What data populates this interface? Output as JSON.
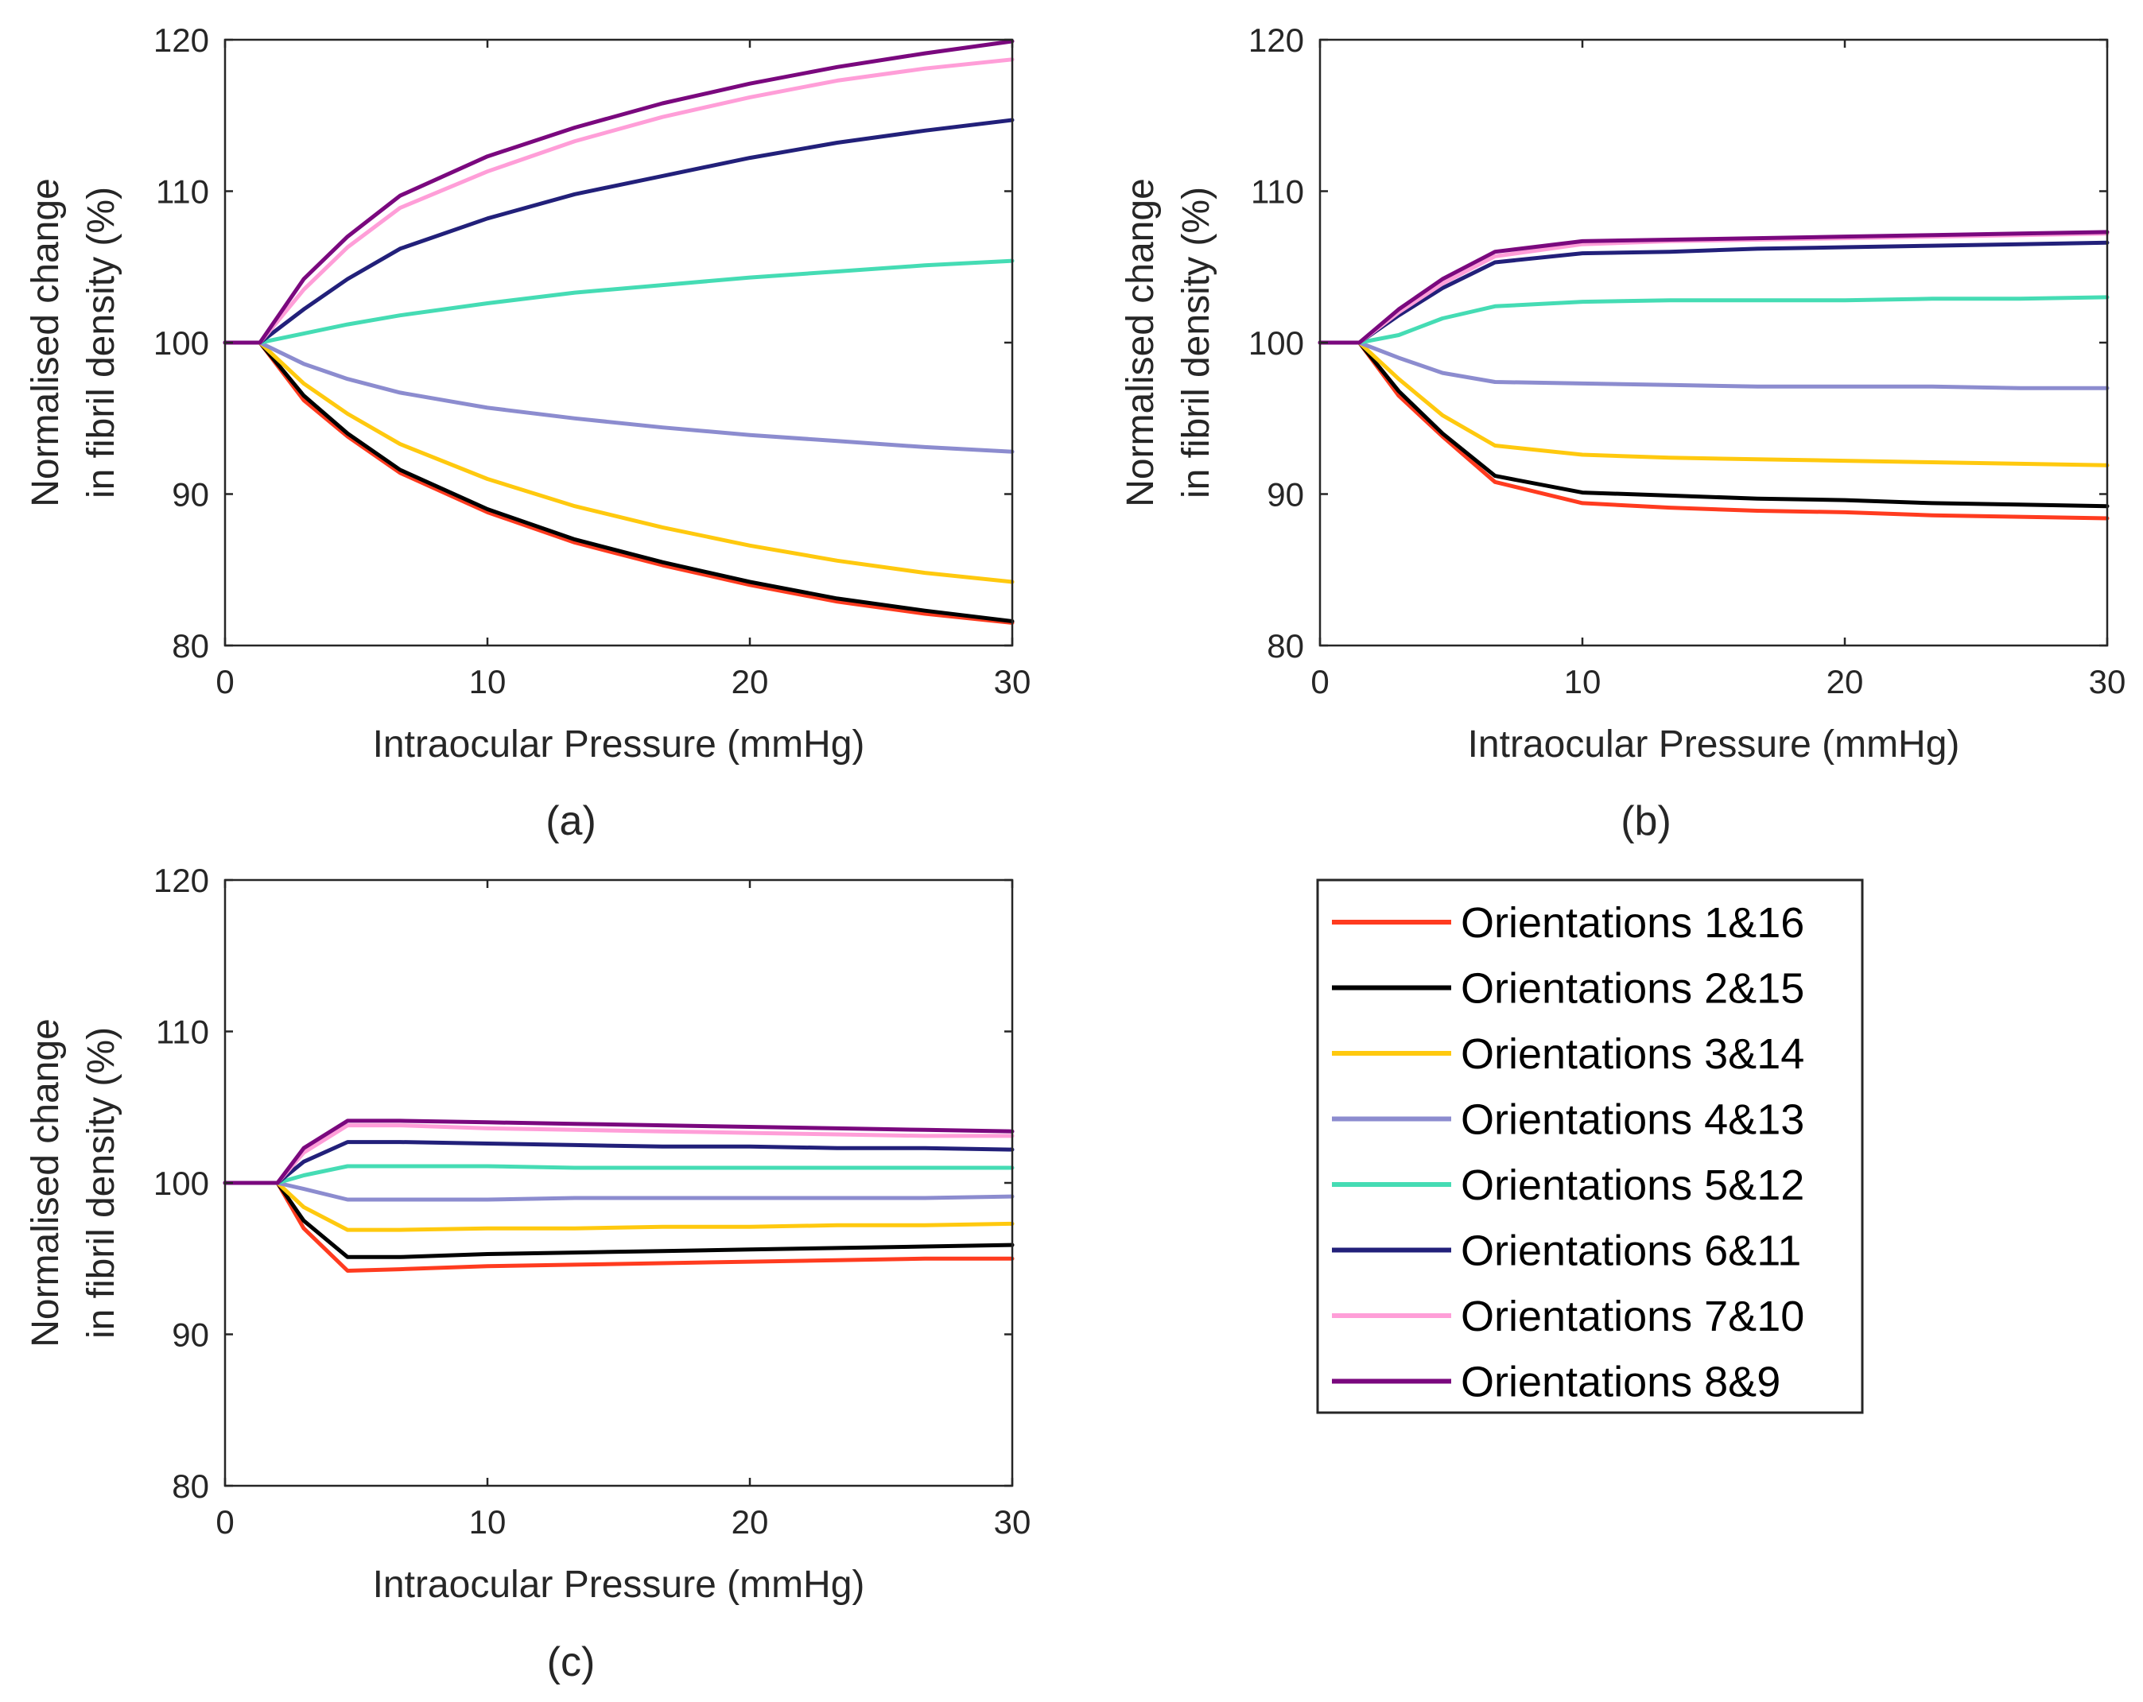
{
  "legend": {
    "items": [
      {
        "label": "Orientations 1&16",
        "color": "#ff3b1f"
      },
      {
        "label": "Orientations 2&15",
        "color": "#000000"
      },
      {
        "label": "Orientations 3&14",
        "color": "#ffc90e"
      },
      {
        "label": "Orientations 4&13",
        "color": "#8c8ccf"
      },
      {
        "label": "Orientations 5&12",
        "color": "#45dcb4"
      },
      {
        "label": "Orientations 6&11",
        "color": "#22207a"
      },
      {
        "label": "Orientations 7&10",
        "color": "#ff9ed8"
      },
      {
        "label": "Orientations 8&9",
        "color": "#7a087e"
      }
    ]
  },
  "chart_data": [
    {
      "type": "line",
      "panel_label": "(a)",
      "xlabel": "Intraocular Pressure (mmHg)",
      "ylabel": [
        "Normalised change",
        "in fibril density (%)"
      ],
      "xlim": [
        0,
        30
      ],
      "ylim": [
        80,
        120
      ],
      "xticks": [
        "0",
        "10",
        "20",
        "30"
      ],
      "yticks": [
        "80",
        "90",
        "100",
        "110",
        "120"
      ],
      "x": [
        0,
        1.33,
        3,
        4.67,
        6.67,
        10,
        13.33,
        16.67,
        20,
        23.33,
        26.67,
        30
      ],
      "series": [
        {
          "name": "Orientations 1&16",
          "values": [
            100,
            100,
            96.2,
            93.8,
            91.4,
            88.8,
            86.8,
            85.3,
            84.0,
            82.9,
            82.1,
            81.5
          ]
        },
        {
          "name": "Orientations 2&15",
          "values": [
            100,
            100,
            96.5,
            94.0,
            91.6,
            89.0,
            87.0,
            85.5,
            84.2,
            83.1,
            82.3,
            81.6
          ]
        },
        {
          "name": "Orientations 3&14",
          "values": [
            100,
            100,
            97.3,
            95.3,
            93.3,
            91.0,
            89.2,
            87.8,
            86.6,
            85.6,
            84.8,
            84.2
          ]
        },
        {
          "name": "Orientations 4&13",
          "values": [
            100,
            100,
            98.6,
            97.6,
            96.7,
            95.7,
            95.0,
            94.4,
            93.9,
            93.5,
            93.1,
            92.8
          ]
        },
        {
          "name": "Orientations 5&12",
          "values": [
            100,
            100,
            100.6,
            101.2,
            101.8,
            102.6,
            103.3,
            103.8,
            104.3,
            104.7,
            105.1,
            105.4
          ]
        },
        {
          "name": "Orientations 6&11",
          "values": [
            100,
            100,
            102.2,
            104.2,
            106.2,
            108.2,
            109.8,
            111.0,
            112.2,
            113.2,
            114.0,
            114.7
          ]
        },
        {
          "name": "Orientations 7&10",
          "values": [
            100,
            100,
            103.5,
            106.3,
            108.9,
            111.3,
            113.3,
            114.9,
            116.2,
            117.3,
            118.1,
            118.7
          ]
        },
        {
          "name": "Orientations 8&9",
          "values": [
            100,
            100,
            104.2,
            107.0,
            109.7,
            112.3,
            114.2,
            115.8,
            117.1,
            118.2,
            119.1,
            119.9
          ]
        }
      ]
    },
    {
      "type": "line",
      "panel_label": "(b)",
      "xlabel": "Intraocular Pressure (mmHg)",
      "ylabel": [
        "Normalised change",
        "in fibril density (%)"
      ],
      "xlim": [
        0,
        30
      ],
      "ylim": [
        80,
        120
      ],
      "xticks": [
        "0",
        "10",
        "20",
        "30"
      ],
      "yticks": [
        "80",
        "90",
        "100",
        "110",
        "120"
      ],
      "x": [
        0,
        1.5,
        3,
        4.67,
        6.67,
        10,
        13.33,
        16.67,
        20,
        23.33,
        26.67,
        30
      ],
      "series": [
        {
          "name": "Orientations 1&16",
          "values": [
            100,
            100,
            96.5,
            93.8,
            90.8,
            89.4,
            89.1,
            88.9,
            88.8,
            88.6,
            88.5,
            88.4
          ]
        },
        {
          "name": "Orientations 2&15",
          "values": [
            100,
            100,
            96.8,
            94.0,
            91.2,
            90.1,
            89.9,
            89.7,
            89.6,
            89.4,
            89.3,
            89.2
          ]
        },
        {
          "name": "Orientations 3&14",
          "values": [
            100,
            100,
            97.6,
            95.2,
            93.2,
            92.6,
            92.4,
            92.3,
            92.2,
            92.1,
            92.0,
            91.9
          ]
        },
        {
          "name": "Orientations 4&13",
          "values": [
            100,
            100,
            99.0,
            98.0,
            97.4,
            97.3,
            97.2,
            97.1,
            97.1,
            97.1,
            97.0,
            97.0
          ]
        },
        {
          "name": "Orientations 5&12",
          "values": [
            100,
            100,
            100.5,
            101.6,
            102.4,
            102.7,
            102.8,
            102.8,
            102.8,
            102.9,
            102.9,
            103.0
          ]
        },
        {
          "name": "Orientations 6&11",
          "values": [
            100,
            100,
            101.8,
            103.6,
            105.3,
            105.9,
            106.0,
            106.2,
            106.3,
            106.4,
            106.5,
            106.6
          ]
        },
        {
          "name": "Orientations 7&10",
          "values": [
            100,
            100,
            102.0,
            103.9,
            105.7,
            106.5,
            106.7,
            106.8,
            106.9,
            107.0,
            107.1,
            107.2
          ]
        },
        {
          "name": "Orientations 8&9",
          "values": [
            100,
            100,
            102.2,
            104.2,
            106.0,
            106.7,
            106.8,
            106.9,
            107.0,
            107.1,
            107.2,
            107.3
          ]
        }
      ]
    },
    {
      "type": "line",
      "panel_label": "(c)",
      "xlabel": "Intraocular Pressure (mmHg)",
      "ylabel": [
        "Normalised change",
        "in fibril density (%)"
      ],
      "xlim": [
        0,
        30
      ],
      "ylim": [
        80,
        120
      ],
      "xticks": [
        "0",
        "10",
        "20",
        "30"
      ],
      "yticks": [
        "80",
        "90",
        "100",
        "110",
        "120"
      ],
      "x": [
        0,
        2,
        3,
        4.67,
        6.67,
        10,
        13.33,
        16.67,
        20,
        23.33,
        26.67,
        30
      ],
      "series": [
        {
          "name": "Orientations 1&16",
          "values": [
            100,
            100,
            97.0,
            94.2,
            94.3,
            94.5,
            94.6,
            94.7,
            94.8,
            94.9,
            95.0,
            95.0
          ]
        },
        {
          "name": "Orientations 2&15",
          "values": [
            100,
            100,
            97.5,
            95.1,
            95.1,
            95.3,
            95.4,
            95.5,
            95.6,
            95.7,
            95.8,
            95.9
          ]
        },
        {
          "name": "Orientations 3&14",
          "values": [
            100,
            100,
            98.4,
            96.9,
            96.9,
            97.0,
            97.0,
            97.1,
            97.1,
            97.2,
            97.2,
            97.3
          ]
        },
        {
          "name": "Orientations 4&13",
          "values": [
            100,
            100,
            99.6,
            98.9,
            98.9,
            98.9,
            99.0,
            99.0,
            99.0,
            99.0,
            99.0,
            99.1
          ]
        },
        {
          "name": "Orientations 5&12",
          "values": [
            100,
            100,
            100.5,
            101.1,
            101.1,
            101.1,
            101.0,
            101.0,
            101.0,
            101.0,
            101.0,
            101.0
          ]
        },
        {
          "name": "Orientations 6&11",
          "values": [
            100,
            100,
            101.4,
            102.7,
            102.7,
            102.6,
            102.5,
            102.4,
            102.4,
            102.3,
            102.3,
            102.2
          ]
        },
        {
          "name": "Orientations 7&10",
          "values": [
            100,
            100,
            102.0,
            103.8,
            103.8,
            103.6,
            103.5,
            103.4,
            103.3,
            103.2,
            103.1,
            103.1
          ]
        },
        {
          "name": "Orientations 8&9",
          "values": [
            100,
            100,
            102.3,
            104.1,
            104.1,
            104.0,
            103.9,
            103.8,
            103.7,
            103.6,
            103.5,
            103.4
          ]
        }
      ]
    }
  ]
}
